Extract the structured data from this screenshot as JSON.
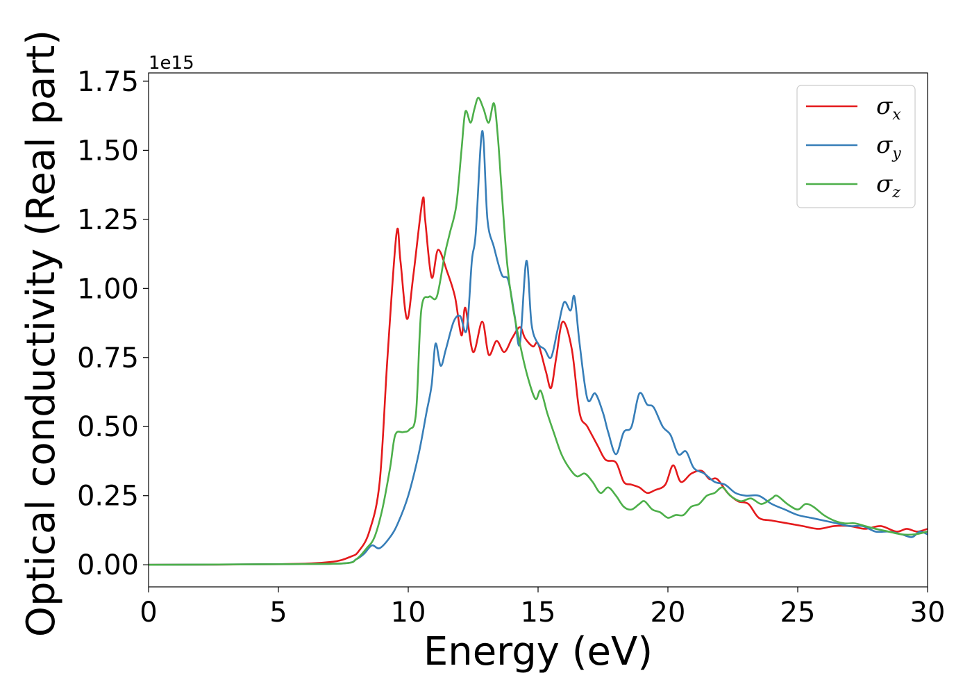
{
  "chart_data": {
    "type": "line",
    "xlabel": "Energy (eV)",
    "ylabel": "Optical conductivity (Real part)",
    "y_offset_text": "1e15",
    "xlim": [
      0,
      30
    ],
    "ylim": [
      -0.08,
      1.78
    ],
    "xticks": [
      0,
      5,
      10,
      15,
      20,
      25,
      30
    ],
    "xtick_labels": [
      "0",
      "5",
      "10",
      "15",
      "20",
      "25",
      "30"
    ],
    "yticks": [
      0.0,
      0.25,
      0.5,
      0.75,
      1.0,
      1.25,
      1.5,
      1.75
    ],
    "ytick_labels": [
      "0.00",
      "0.25",
      "0.50",
      "0.75",
      "1.00",
      "1.25",
      "1.50",
      "1.75"
    ],
    "legend_position": "top-right",
    "grid": false,
    "series": [
      {
        "name": "σ",
        "sub": "x",
        "color": "#e41a1c",
        "x": [
          0,
          5,
          7,
          7.8,
          8.1,
          8.5,
          8.9,
          9.2,
          9.55,
          9.7,
          9.95,
          10.2,
          10.55,
          10.65,
          10.9,
          11.15,
          11.5,
          11.8,
          12.05,
          12.2,
          12.5,
          12.85,
          13.1,
          13.4,
          13.7,
          14.0,
          14.3,
          14.5,
          14.8,
          15.0,
          15.3,
          15.5,
          15.7,
          15.95,
          16.3,
          16.6,
          16.9,
          17.3,
          17.6,
          18.0,
          18.3,
          18.6,
          18.9,
          19.2,
          19.5,
          19.9,
          20.2,
          20.5,
          20.9,
          21.3,
          21.6,
          21.9,
          22.3,
          22.7,
          23.1,
          23.5,
          24.0,
          24.6,
          25.2,
          25.8,
          26.4,
          27.0,
          27.6,
          28.2,
          28.8,
          29.2,
          29.6,
          30.0
        ],
        "y": [
          0.0,
          0.002,
          0.01,
          0.03,
          0.05,
          0.12,
          0.3,
          0.75,
          1.2,
          1.1,
          0.89,
          1.05,
          1.32,
          1.25,
          1.04,
          1.14,
          1.06,
          0.97,
          0.83,
          0.93,
          0.77,
          0.88,
          0.76,
          0.81,
          0.77,
          0.82,
          0.86,
          0.82,
          0.79,
          0.8,
          0.7,
          0.64,
          0.75,
          0.88,
          0.78,
          0.55,
          0.5,
          0.43,
          0.38,
          0.37,
          0.3,
          0.29,
          0.28,
          0.26,
          0.27,
          0.29,
          0.36,
          0.3,
          0.33,
          0.34,
          0.31,
          0.31,
          0.26,
          0.23,
          0.22,
          0.17,
          0.16,
          0.15,
          0.14,
          0.13,
          0.14,
          0.14,
          0.13,
          0.14,
          0.12,
          0.13,
          0.12,
          0.13
        ]
      },
      {
        "name": "σ",
        "sub": "y",
        "color": "#377eb8",
        "x": [
          0,
          5,
          7.5,
          8.0,
          8.3,
          8.6,
          8.9,
          9.3,
          9.6,
          10.0,
          10.4,
          10.7,
          10.9,
          11.05,
          11.25,
          11.45,
          11.75,
          12.0,
          12.25,
          12.45,
          12.6,
          12.85,
          13.05,
          13.3,
          13.6,
          13.85,
          14.1,
          14.3,
          14.55,
          14.75,
          15.0,
          15.25,
          15.5,
          15.75,
          16.0,
          16.25,
          16.4,
          16.6,
          16.9,
          17.2,
          17.5,
          17.7,
          18.0,
          18.3,
          18.6,
          18.9,
          19.2,
          19.45,
          19.8,
          20.1,
          20.4,
          20.7,
          21.0,
          21.4,
          21.8,
          22.2,
          22.6,
          23.0,
          23.5,
          24.0,
          24.5,
          25.0,
          25.5,
          26.0,
          26.5,
          27.0,
          27.5,
          28.0,
          28.5,
          29.0,
          29.4,
          29.7,
          30.0
        ],
        "y": [
          0.0,
          0.002,
          0.005,
          0.02,
          0.04,
          0.07,
          0.06,
          0.1,
          0.15,
          0.25,
          0.4,
          0.55,
          0.65,
          0.8,
          0.72,
          0.78,
          0.88,
          0.9,
          0.85,
          1.1,
          1.2,
          1.57,
          1.25,
          1.15,
          1.05,
          1.03,
          0.9,
          0.8,
          1.1,
          0.87,
          0.8,
          0.78,
          0.75,
          0.85,
          0.95,
          0.92,
          0.97,
          0.8,
          0.6,
          0.62,
          0.55,
          0.48,
          0.4,
          0.48,
          0.5,
          0.62,
          0.58,
          0.57,
          0.5,
          0.47,
          0.4,
          0.41,
          0.35,
          0.33,
          0.3,
          0.29,
          0.26,
          0.25,
          0.25,
          0.22,
          0.2,
          0.18,
          0.17,
          0.16,
          0.15,
          0.14,
          0.14,
          0.12,
          0.12,
          0.11,
          0.1,
          0.12,
          0.11
        ]
      },
      {
        "name": "σ",
        "sub": "z",
        "color": "#4daf4a",
        "x": [
          0,
          5,
          7.5,
          8.0,
          8.4,
          8.7,
          9.0,
          9.3,
          9.5,
          9.8,
          10.05,
          10.3,
          10.5,
          10.8,
          11.1,
          11.4,
          11.6,
          11.85,
          12.05,
          12.2,
          12.4,
          12.55,
          12.7,
          12.9,
          13.1,
          13.3,
          13.45,
          13.6,
          13.8,
          14.0,
          14.3,
          14.6,
          14.9,
          15.1,
          15.35,
          15.6,
          15.9,
          16.2,
          16.5,
          16.8,
          17.1,
          17.4,
          17.7,
          18.0,
          18.3,
          18.6,
          18.9,
          19.1,
          19.4,
          19.7,
          20.0,
          20.3,
          20.6,
          20.9,
          21.2,
          21.5,
          21.8,
          22.1,
          22.4,
          22.8,
          23.2,
          23.6,
          24.0,
          24.2,
          24.6,
          25.0,
          25.3,
          25.6,
          26.0,
          26.4,
          26.8,
          27.2,
          27.6,
          28.0,
          28.5,
          29.0,
          29.5,
          30.0
        ],
        "y": [
          0.0,
          0.002,
          0.005,
          0.02,
          0.06,
          0.1,
          0.2,
          0.35,
          0.47,
          0.48,
          0.49,
          0.55,
          0.92,
          0.97,
          0.97,
          1.12,
          1.2,
          1.3,
          1.5,
          1.64,
          1.6,
          1.65,
          1.69,
          1.65,
          1.6,
          1.67,
          1.55,
          1.35,
          1.1,
          0.95,
          0.8,
          0.68,
          0.6,
          0.63,
          0.55,
          0.48,
          0.4,
          0.35,
          0.32,
          0.33,
          0.3,
          0.26,
          0.28,
          0.25,
          0.21,
          0.2,
          0.22,
          0.23,
          0.2,
          0.19,
          0.17,
          0.18,
          0.18,
          0.21,
          0.22,
          0.25,
          0.26,
          0.28,
          0.25,
          0.23,
          0.24,
          0.22,
          0.24,
          0.25,
          0.22,
          0.2,
          0.22,
          0.21,
          0.18,
          0.16,
          0.15,
          0.15,
          0.14,
          0.13,
          0.12,
          0.11,
          0.11,
          0.12
        ]
      }
    ]
  }
}
